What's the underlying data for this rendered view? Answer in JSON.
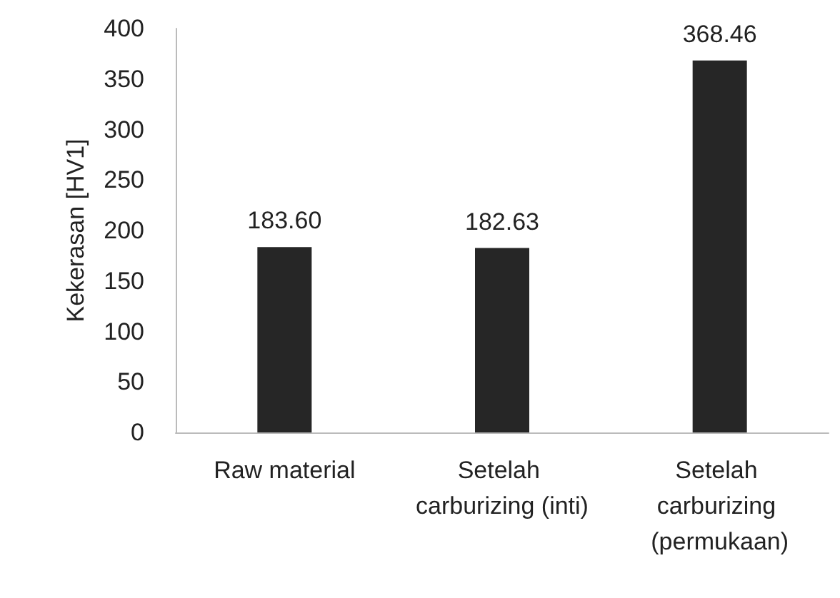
{
  "chart_data": {
    "type": "bar",
    "ylabel": "Kekerasan [HV1]",
    "categories": [
      "Raw material",
      "Setelah carburizing (inti)",
      "Setelah carburizing (permukaan)"
    ],
    "values": [
      183.6,
      182.63,
      368.46
    ],
    "value_labels": [
      "183.60",
      "182.63",
      "368.46"
    ],
    "color": "#262626",
    "ylim": [
      0,
      400
    ],
    "yticks": [
      0,
      50,
      100,
      150,
      200,
      250,
      300,
      350,
      400
    ],
    "grid": false
  }
}
